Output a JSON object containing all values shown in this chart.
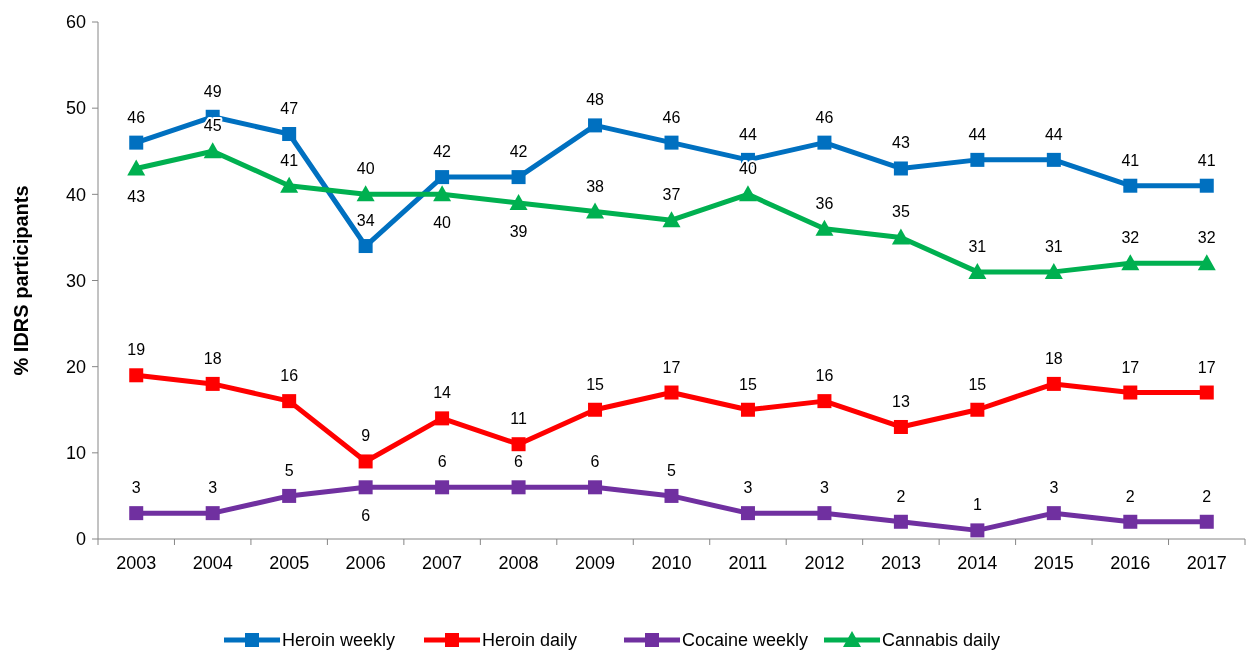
{
  "chart_data": {
    "type": "line",
    "ylabel": "% IDRS participants",
    "categories": [
      "2003",
      "2004",
      "2005",
      "2006",
      "2007",
      "2008",
      "2009",
      "2010",
      "2011",
      "2012",
      "2013",
      "2014",
      "2015",
      "2016",
      "2017"
    ],
    "series": [
      {
        "name": "Heroin weekly",
        "color": "#0070c0",
        "marker": "square",
        "values": [
          46,
          49,
          47,
          34,
          42,
          42,
          48,
          46,
          44,
          46,
          43,
          44,
          44,
          41,
          41
        ]
      },
      {
        "name": "Heroin daily",
        "color": "#ff0000",
        "marker": "square",
        "values": [
          19,
          18,
          16,
          9,
          14,
          11,
          15,
          17,
          15,
          16,
          13,
          15,
          18,
          17,
          17
        ]
      },
      {
        "name": "Cocaine weekly",
        "color": "#7030a0",
        "marker": "square",
        "values": [
          3,
          3,
          5,
          6,
          6,
          6,
          6,
          5,
          3,
          3,
          2,
          1,
          3,
          2,
          2
        ]
      },
      {
        "name": "Cannabis daily",
        "color": "#00b050",
        "marker": "triangle",
        "values": [
          43,
          45,
          41,
          40,
          40,
          39,
          38,
          37,
          40,
          36,
          35,
          31,
          31,
          32,
          32
        ]
      }
    ],
    "ylim": [
      0,
      60
    ],
    "yticks": [
      0,
      10,
      20,
      30,
      40,
      50,
      60
    ],
    "grid": false,
    "legend": "bottom",
    "data_labels": true,
    "line_style": "solid"
  }
}
